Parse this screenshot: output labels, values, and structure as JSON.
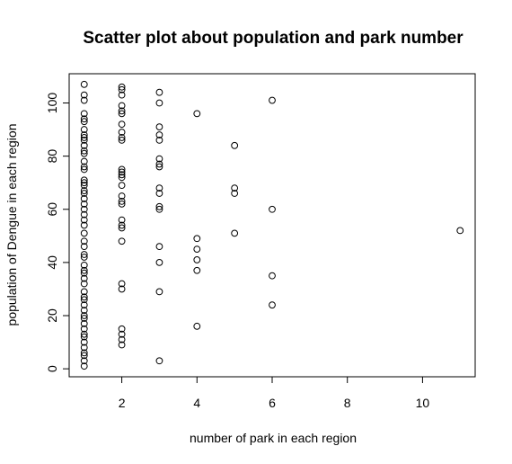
{
  "chart_data": {
    "type": "scatter",
    "title": "Scatter plot about population and park number",
    "xlabel": "number of park in each region",
    "ylabel": "population of Dengue in each region",
    "xlim": [
      0.6,
      11.4
    ],
    "ylim": [
      -3,
      111
    ],
    "xticks": [
      2,
      4,
      6,
      8,
      10
    ],
    "yticks": [
      0,
      20,
      40,
      60,
      80,
      100
    ],
    "grid": false,
    "legend": "none",
    "marker": "open-circle",
    "point_color": "#000000",
    "points": [
      [
        1,
        1
      ],
      [
        1,
        3
      ],
      [
        1,
        5
      ],
      [
        1,
        6
      ],
      [
        1,
        8
      ],
      [
        1,
        10
      ],
      [
        1,
        12
      ],
      [
        1,
        13
      ],
      [
        1,
        15
      ],
      [
        1,
        17
      ],
      [
        1,
        19
      ],
      [
        1,
        20
      ],
      [
        1,
        22
      ],
      [
        1,
        24
      ],
      [
        1,
        26
      ],
      [
        1,
        27
      ],
      [
        1,
        29
      ],
      [
        1,
        32
      ],
      [
        1,
        34
      ],
      [
        1,
        36
      ],
      [
        1,
        37
      ],
      [
        1,
        39
      ],
      [
        1,
        42
      ],
      [
        1,
        43
      ],
      [
        1,
        46
      ],
      [
        1,
        48
      ],
      [
        1,
        51
      ],
      [
        1,
        54
      ],
      [
        1,
        56
      ],
      [
        1,
        58
      ],
      [
        1,
        60
      ],
      [
        1,
        62
      ],
      [
        1,
        64
      ],
      [
        1,
        66
      ],
      [
        1,
        67
      ],
      [
        1,
        69
      ],
      [
        1,
        70
      ],
      [
        1,
        71
      ],
      [
        1,
        75
      ],
      [
        1,
        76
      ],
      [
        1,
        78
      ],
      [
        1,
        81
      ],
      [
        1,
        82
      ],
      [
        1,
        84
      ],
      [
        1,
        86
      ],
      [
        1,
        87
      ],
      [
        1,
        88
      ],
      [
        1,
        90
      ],
      [
        1,
        93
      ],
      [
        1,
        94
      ],
      [
        1,
        96
      ],
      [
        1,
        101
      ],
      [
        1,
        103
      ],
      [
        1,
        107
      ],
      [
        2,
        9
      ],
      [
        2,
        11
      ],
      [
        2,
        13
      ],
      [
        2,
        15
      ],
      [
        2,
        30
      ],
      [
        2,
        32
      ],
      [
        2,
        48
      ],
      [
        2,
        53
      ],
      [
        2,
        54
      ],
      [
        2,
        56
      ],
      [
        2,
        62
      ],
      [
        2,
        63
      ],
      [
        2,
        65
      ],
      [
        2,
        69
      ],
      [
        2,
        72
      ],
      [
        2,
        73
      ],
      [
        2,
        74
      ],
      [
        2,
        75
      ],
      [
        2,
        86
      ],
      [
        2,
        87
      ],
      [
        2,
        89
      ],
      [
        2,
        92
      ],
      [
        2,
        96
      ],
      [
        2,
        97
      ],
      [
        2,
        99
      ],
      [
        2,
        103
      ],
      [
        2,
        105
      ],
      [
        2,
        106
      ],
      [
        3,
        3
      ],
      [
        3,
        29
      ],
      [
        3,
        40
      ],
      [
        3,
        46
      ],
      [
        3,
        60
      ],
      [
        3,
        61
      ],
      [
        3,
        66
      ],
      [
        3,
        68
      ],
      [
        3,
        76
      ],
      [
        3,
        77
      ],
      [
        3,
        79
      ],
      [
        3,
        86
      ],
      [
        3,
        88
      ],
      [
        3,
        91
      ],
      [
        3,
        100
      ],
      [
        3,
        104
      ],
      [
        4,
        16
      ],
      [
        4,
        37
      ],
      [
        4,
        41
      ],
      [
        4,
        45
      ],
      [
        4,
        49
      ],
      [
        4,
        96
      ],
      [
        5,
        51
      ],
      [
        5,
        66
      ],
      [
        5,
        68
      ],
      [
        5,
        84
      ],
      [
        6,
        24
      ],
      [
        6,
        35
      ],
      [
        6,
        60
      ],
      [
        6,
        101
      ],
      [
        11,
        52
      ]
    ]
  }
}
